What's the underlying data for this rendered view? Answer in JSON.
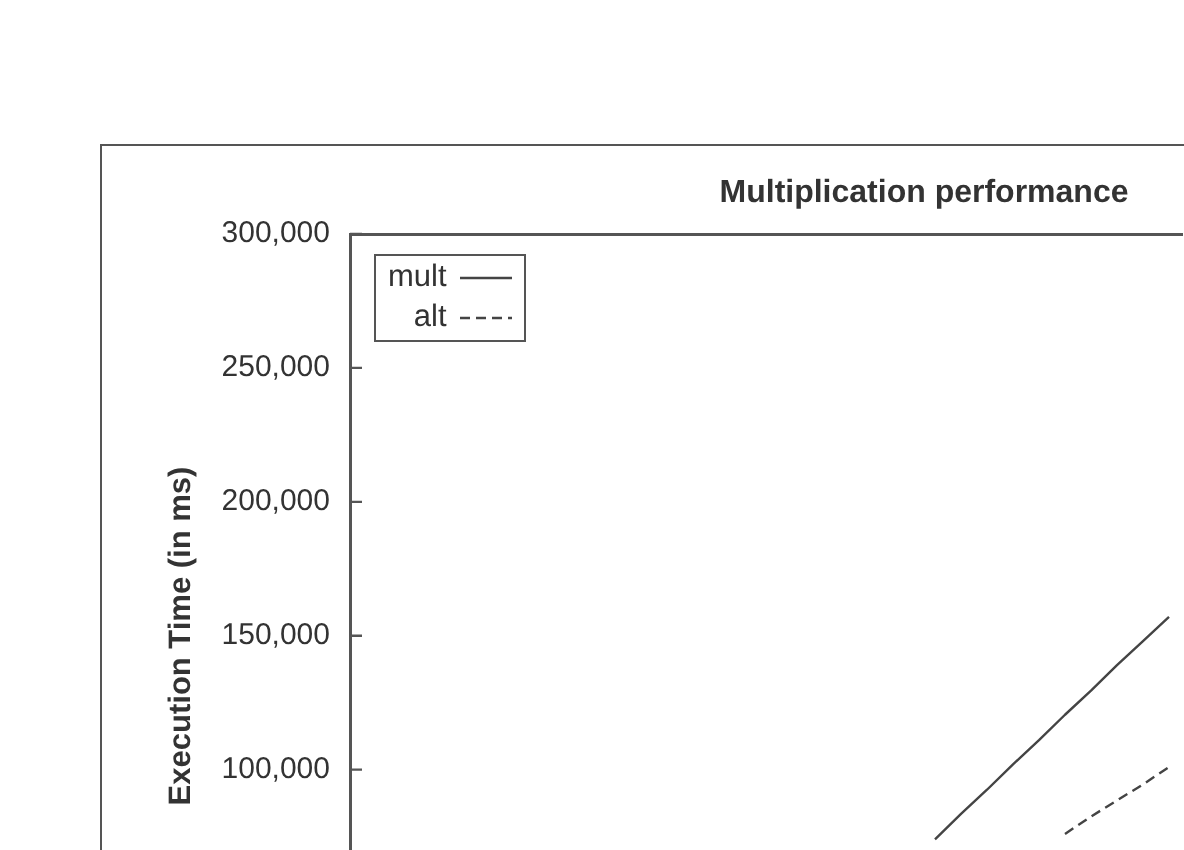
{
  "chart_data": {
    "type": "line",
    "title": "Multiplication performance",
    "ylabel": "Execution Time (in ms)",
    "categories": [
      null,
      null,
      null,
      null,
      null,
      null,
      null,
      null,
      null,
      null,
      null,
      null,
      null,
      null,
      null,
      null,
      null,
      null,
      null,
      null,
      null,
      null,
      null,
      null,
      null,
      null,
      null,
      null,
      null,
      null,
      null,
      null
    ],
    "series": [
      {
        "name": "mult",
        "color": "#444444",
        "line_style": "solid",
        "values": [
          null,
          null,
          null,
          null,
          null,
          null,
          null,
          null,
          null,
          null,
          null,
          null,
          null,
          null,
          null,
          null,
          null,
          null,
          null,
          null,
          null,
          null,
          74000,
          83500,
          92500,
          102000,
          111000,
          120500,
          129500,
          139000,
          148000,
          157000
        ]
      },
      {
        "name": "alt",
        "color": "#444444",
        "line_style": "dashed",
        "values": [
          null,
          null,
          null,
          null,
          null,
          null,
          null,
          null,
          null,
          null,
          null,
          null,
          null,
          null,
          null,
          null,
          null,
          null,
          null,
          null,
          null,
          null,
          null,
          null,
          null,
          null,
          null,
          76000,
          82500,
          88500,
          94500,
          101000
        ]
      }
    ],
    "ylim": [
      70000,
      300000
    ],
    "yticks": [
      {
        "value": 100000,
        "label": "100,000"
      },
      {
        "value": 150000,
        "label": "150,000"
      },
      {
        "value": 200000,
        "label": "200,000"
      },
      {
        "value": 250000,
        "label": "250,000"
      },
      {
        "value": 300000,
        "label": "300,000"
      }
    ],
    "tick_labels": "y",
    "grid": false,
    "legend": "top left",
    "marker": "none"
  }
}
